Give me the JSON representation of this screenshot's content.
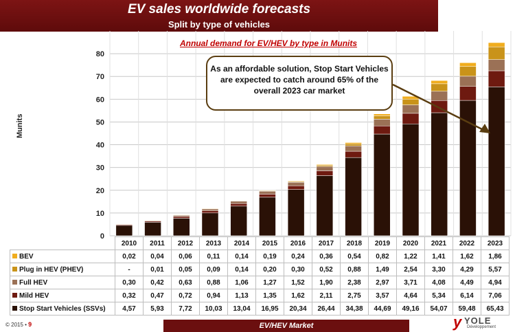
{
  "header": {
    "title": "EV sales worldwide forecasts",
    "subtitle": "Split by type of vehicles"
  },
  "chart_subtitle": "Annual demand for EV/HEV by type in Munits",
  "callout": "As an affordable solution, Stop Start Vehicles are expected to catch around 65% of the overall 2023 car market",
  "footer": {
    "band": "EV/HEV Market",
    "copyright": "© 2015 •",
    "page": "9",
    "logo_word": "YOLE",
    "logo_sub": "Développement"
  },
  "chart_data": {
    "type": "bar",
    "stacked": true,
    "title": "Annual demand for EV/HEV by type in Munits",
    "ylabel": "Munits",
    "xlabel": "",
    "ylim": [
      0,
      90
    ],
    "yticks": [
      0,
      10,
      20,
      30,
      40,
      50,
      60,
      70,
      80
    ],
    "grid": true,
    "categories": [
      "2010",
      "2011",
      "2012",
      "2013",
      "2014",
      "2015",
      "2016",
      "2017",
      "2018",
      "2019",
      "2020",
      "2021",
      "2022",
      "2023"
    ],
    "series": [
      {
        "name": "Stop Start Vehicles (SSVs)",
        "color": "#2a1106",
        "values": [
          4.57,
          5.93,
          7.72,
          10.03,
          13.04,
          16.95,
          20.34,
          26.44,
          34.38,
          44.69,
          49.16,
          54.07,
          59.48,
          65.43
        ],
        "labels": [
          "4,57",
          "5,93",
          "7,72",
          "10,03",
          "13,04",
          "16,95",
          "20,34",
          "26,44",
          "34,38",
          "44,69",
          "49,16",
          "54,07",
          "59,48",
          "65,43"
        ]
      },
      {
        "name": "Mild HEV",
        "color": "#6e1a10",
        "values": [
          0.32,
          0.47,
          0.72,
          0.94,
          1.13,
          1.35,
          1.62,
          2.11,
          2.75,
          3.57,
          4.64,
          5.34,
          6.14,
          7.06
        ],
        "labels": [
          "0,32",
          "0,47",
          "0,72",
          "0,94",
          "1,13",
          "1,35",
          "1,62",
          "2,11",
          "2,75",
          "3,57",
          "4,64",
          "5,34",
          "6,14",
          "7,06"
        ]
      },
      {
        "name": "Full HEV",
        "color": "#9b7156",
        "values": [
          0.3,
          0.42,
          0.63,
          0.88,
          1.06,
          1.27,
          1.52,
          1.9,
          2.38,
          2.97,
          3.71,
          4.08,
          4.49,
          4.94
        ],
        "labels": [
          "0,30",
          "0,42",
          "0,63",
          "0,88",
          "1,06",
          "1,27",
          "1,52",
          "1,90",
          "2,38",
          "2,97",
          "3,71",
          "4,08",
          "4,49",
          "4,94"
        ]
      },
      {
        "name": "Plug in HEV (PHEV)",
        "color": "#c9931a",
        "values": [
          0,
          0.01,
          0.05,
          0.09,
          0.14,
          0.2,
          0.3,
          0.52,
          0.88,
          1.49,
          2.54,
          3.3,
          4.29,
          5.57
        ],
        "labels": [
          "-",
          "0,01",
          "0,05",
          "0,09",
          "0,14",
          "0,20",
          "0,30",
          "0,52",
          "0,88",
          "1,49",
          "2,54",
          "3,30",
          "4,29",
          "5,57"
        ]
      },
      {
        "name": "BEV",
        "color": "#f0ad1e",
        "values": [
          0.02,
          0.04,
          0.06,
          0.11,
          0.14,
          0.19,
          0.24,
          0.36,
          0.54,
          0.82,
          1.22,
          1.41,
          1.62,
          1.86
        ],
        "labels": [
          "0,02",
          "0,04",
          "0,06",
          "0,11",
          "0,14",
          "0,19",
          "0,24",
          "0,36",
          "0,54",
          "0,82",
          "1,22",
          "1,41",
          "1,62",
          "1,86"
        ]
      }
    ],
    "table_row_order": [
      "BEV",
      "Plug in HEV (PHEV)",
      "Full HEV",
      "Mild HEV",
      "Stop Start Vehicles (SSVs)"
    ]
  }
}
